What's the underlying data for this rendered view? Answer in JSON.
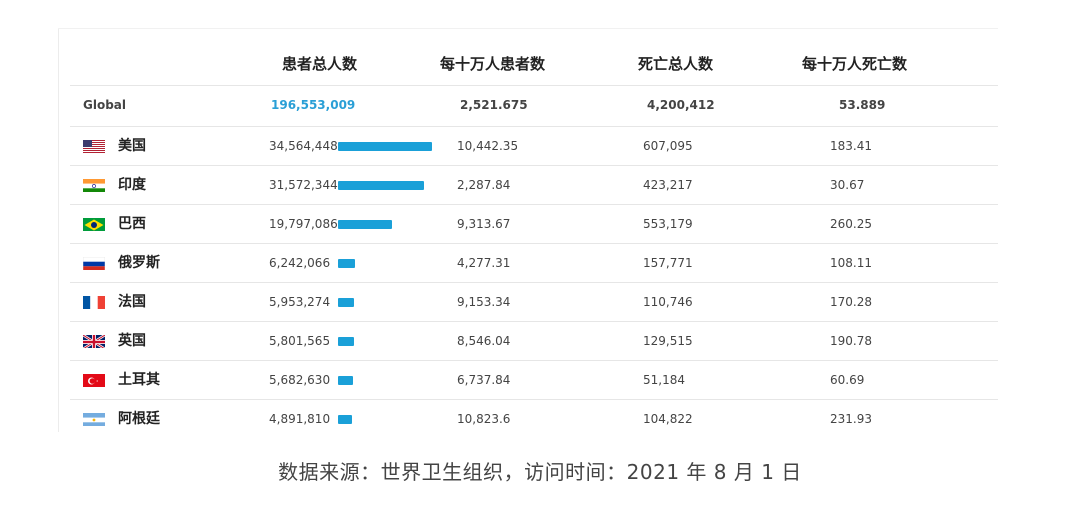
{
  "table": {
    "headers": {
      "cases": "患者总人数",
      "cases_per_100k": "每十万人患者数",
      "deaths": "死亡总人数",
      "deaths_per_100k": "每十万人死亡数"
    },
    "global": {
      "label": "Global",
      "cases": "196,553,009",
      "cases_per_100k": "2,521.675",
      "deaths": "4,200,412",
      "deaths_per_100k": "53.889"
    },
    "rows": [
      {
        "flag": "us-flag-icon",
        "name": "美国",
        "cases": "34,564,448",
        "cases_value": 34564448,
        "cases_per_100k": "10,442.35",
        "deaths": "607,095",
        "deaths_per_100k": "183.41"
      },
      {
        "flag": "india-flag-icon",
        "name": "印度",
        "cases": "31,572,344",
        "cases_value": 31572344,
        "cases_per_100k": "2,287.84",
        "deaths": "423,217",
        "deaths_per_100k": "30.67"
      },
      {
        "flag": "brazil-flag-icon",
        "name": "巴西",
        "cases": "19,797,086",
        "cases_value": 19797086,
        "cases_per_100k": "9,313.67",
        "deaths": "553,179",
        "deaths_per_100k": "260.25"
      },
      {
        "flag": "russia-flag-icon",
        "name": "俄罗斯",
        "cases": "6,242,066",
        "cases_value": 6242066,
        "cases_per_100k": "4,277.31",
        "deaths": "157,771",
        "deaths_per_100k": "108.11"
      },
      {
        "flag": "france-flag-icon",
        "name": "法国",
        "cases": "5,953,274",
        "cases_value": 5953274,
        "cases_per_100k": "9,153.34",
        "deaths": "110,746",
        "deaths_per_100k": "170.28"
      },
      {
        "flag": "uk-flag-icon",
        "name": "英国",
        "cases": "5,801,565",
        "cases_value": 5801565,
        "cases_per_100k": "8,546.04",
        "deaths": "129,515",
        "deaths_per_100k": "190.78"
      },
      {
        "flag": "turkey-flag-icon",
        "name": "土耳其",
        "cases": "5,682,630",
        "cases_value": 5682630,
        "cases_per_100k": "6,737.84",
        "deaths": "51,184",
        "deaths_per_100k": "60.69"
      },
      {
        "flag": "argentina-flag-icon",
        "name": "阿根廷",
        "cases": "4,891,810",
        "cases_value": 4891810,
        "cases_per_100k": "10,823.6",
        "deaths": "104,822",
        "deaths_per_100k": "231.93"
      }
    ]
  },
  "colors": {
    "bar": "#1aa0d8",
    "global_cases": "#2a9fd6"
  },
  "caption": "数据来源：世界卫生组织，访问时间：2021 年 8 月 1 日"
}
